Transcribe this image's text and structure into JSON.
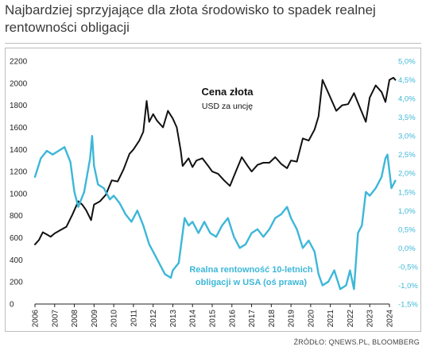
{
  "title": "Najbardziej sprzyjające dla złota środowisko to spadek realnej rentowności obligacji",
  "source": "ŹRÓDŁO: QNEWS.PL, BLOOMBERG",
  "colors": {
    "gold": "#111111",
    "yield": "#3db7d8",
    "axis": "#231f20"
  },
  "chart_data": {
    "type": "line",
    "title": "",
    "annotations": [
      {
        "text": "Cena złota",
        "series": "gold"
      },
      {
        "text": "USD za uncję",
        "series": "gold"
      },
      {
        "text": "Realna rentowność 10-letnich",
        "series": "yield"
      },
      {
        "text": "obligacji w USA (oś prawa)",
        "series": "yield"
      }
    ],
    "x_ticks": [
      "2006",
      "2007",
      "2008",
      "2009",
      "2010",
      "2011",
      "2012",
      "2013",
      "2014",
      "2015",
      "2016",
      "2017",
      "2018",
      "2019",
      "2020",
      "2021",
      "2022",
      "2023",
      "2024"
    ],
    "xlim": [
      2006,
      2024
    ],
    "y_left": {
      "ylim": [
        0,
        2200
      ],
      "ticks": [
        "0",
        "200",
        "400",
        "600",
        "800",
        "1000",
        "1200",
        "1400",
        "1600",
        "1800",
        "2000",
        "2200"
      ]
    },
    "y_right": {
      "ylim": [
        -1.5,
        5.0
      ],
      "ticks": [
        "-1,5%",
        "-1,0%",
        "-0,5%",
        "0,0%",
        "0,5%",
        "1,0%",
        "1,5%",
        "2,0%",
        "2,5%",
        "3,0%",
        "3,5%",
        "4,0%",
        "4,5%",
        "5,0%"
      ]
    },
    "series": [
      {
        "id": "gold",
        "axis": "left",
        "x": [
          2006.0,
          2006.2,
          2006.4,
          2006.6,
          2006.8,
          2007.0,
          2007.3,
          2007.6,
          2007.9,
          2008.2,
          2008.4,
          2008.6,
          2008.85,
          2009.0,
          2009.3,
          2009.6,
          2009.9,
          2010.2,
          2010.5,
          2010.8,
          2011.0,
          2011.3,
          2011.5,
          2011.67,
          2011.8,
          2012.0,
          2012.2,
          2012.5,
          2012.75,
          2013.0,
          2013.2,
          2013.4,
          2013.5,
          2013.8,
          2014.0,
          2014.2,
          2014.5,
          2014.8,
          2015.0,
          2015.3,
          2015.6,
          2015.9,
          2016.2,
          2016.5,
          2016.8,
          2017.0,
          2017.3,
          2017.6,
          2017.9,
          2018.2,
          2018.5,
          2018.8,
          2019.0,
          2019.3,
          2019.6,
          2019.9,
          2020.2,
          2020.4,
          2020.6,
          2021.0,
          2021.3,
          2021.6,
          2021.9,
          2022.2,
          2022.5,
          2022.8,
          2023.0,
          2023.3,
          2023.6,
          2023.8,
          2024.0,
          2024.2,
          2024.3
        ],
        "values": [
          540,
          580,
          650,
          630,
          610,
          640,
          670,
          700,
          810,
          930,
          900,
          850,
          760,
          900,
          930,
          990,
          1120,
          1110,
          1220,
          1360,
          1400,
          1480,
          1560,
          1840,
          1650,
          1720,
          1660,
          1600,
          1750,
          1680,
          1600,
          1390,
          1250,
          1320,
          1240,
          1300,
          1320,
          1250,
          1200,
          1180,
          1120,
          1070,
          1200,
          1330,
          1250,
          1200,
          1260,
          1280,
          1280,
          1330,
          1270,
          1230,
          1300,
          1290,
          1500,
          1480,
          1580,
          1700,
          2030,
          1870,
          1750,
          1800,
          1810,
          1910,
          1780,
          1650,
          1870,
          1980,
          1920,
          1830,
          2030,
          2050,
          2030
        ]
      },
      {
        "id": "yield",
        "axis": "right",
        "x": [
          2006.0,
          2006.3,
          2006.6,
          2006.9,
          2007.2,
          2007.5,
          2007.8,
          2008.0,
          2008.2,
          2008.5,
          2008.8,
          2008.9,
          2009.0,
          2009.2,
          2009.5,
          2009.8,
          2010.0,
          2010.3,
          2010.6,
          2010.9,
          2011.2,
          2011.5,
          2011.8,
          2012.0,
          2012.3,
          2012.6,
          2012.9,
          2013.0,
          2013.3,
          2013.6,
          2013.8,
          2014.0,
          2014.3,
          2014.6,
          2014.9,
          2015.2,
          2015.5,
          2015.8,
          2016.1,
          2016.4,
          2016.7,
          2017.0,
          2017.3,
          2017.6,
          2017.9,
          2018.2,
          2018.5,
          2018.8,
          2019.0,
          2019.3,
          2019.6,
          2019.9,
          2020.2,
          2020.4,
          2020.6,
          2020.9,
          2021.2,
          2021.5,
          2021.8,
          2022.0,
          2022.2,
          2022.4,
          2022.6,
          2022.8,
          2023.0,
          2023.3,
          2023.6,
          2023.8,
          2023.9,
          2024.1,
          2024.3
        ],
        "values": [
          1.9,
          2.4,
          2.6,
          2.5,
          2.6,
          2.7,
          2.3,
          1.5,
          1.1,
          1.5,
          2.4,
          3.0,
          2.2,
          1.7,
          1.6,
          1.3,
          1.4,
          1.2,
          0.9,
          0.7,
          1.0,
          0.6,
          0.1,
          -0.1,
          -0.4,
          -0.7,
          -0.8,
          -0.6,
          -0.4,
          0.8,
          0.6,
          0.7,
          0.4,
          0.7,
          0.4,
          0.3,
          0.6,
          0.8,
          0.3,
          0.0,
          0.1,
          0.4,
          0.5,
          0.3,
          0.5,
          0.8,
          0.9,
          1.1,
          0.8,
          0.5,
          0.0,
          0.2,
          -0.1,
          -0.7,
          -1.0,
          -0.9,
          -0.6,
          -1.1,
          -1.0,
          -0.6,
          -1.1,
          0.4,
          0.6,
          1.5,
          1.4,
          1.6,
          1.9,
          2.4,
          2.5,
          1.6,
          1.8
        ]
      }
    ]
  }
}
